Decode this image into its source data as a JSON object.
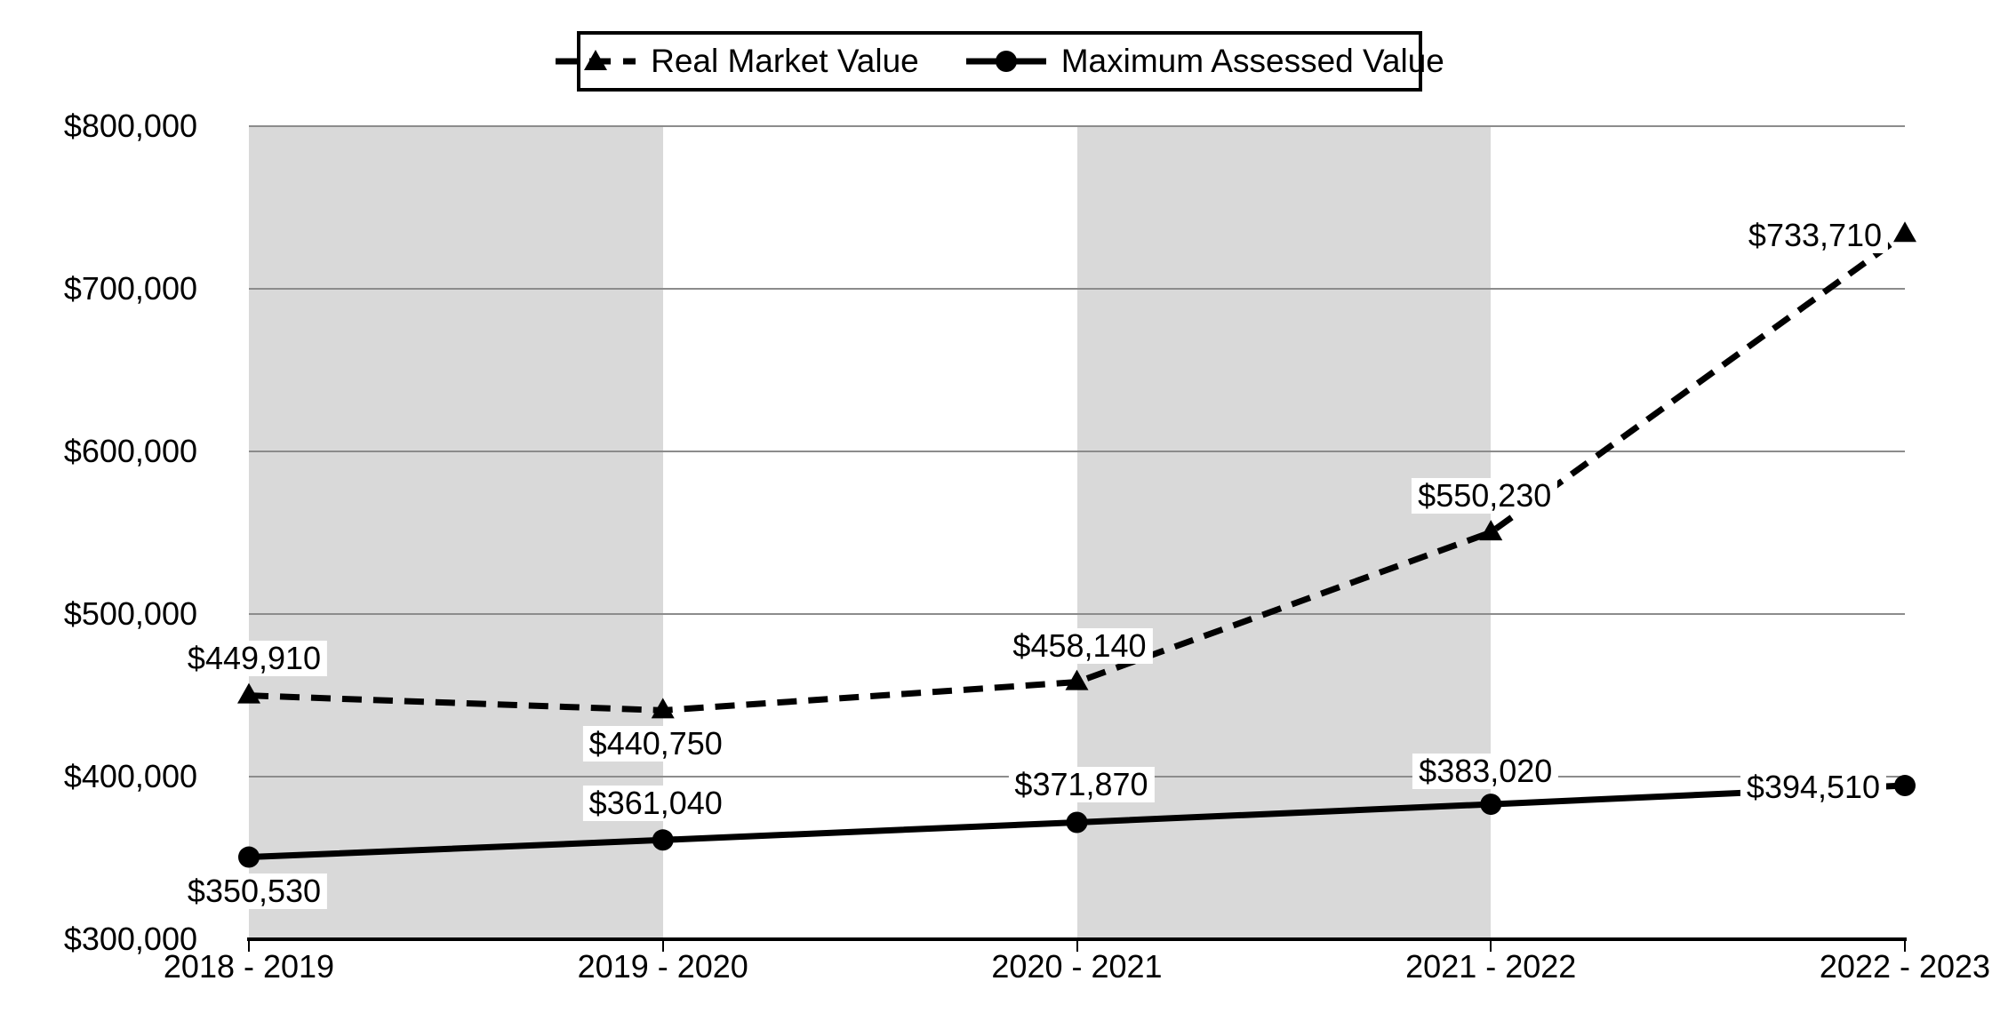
{
  "legend": {
    "items": [
      {
        "label": "Real Market Value",
        "marker": "dashed-triangle"
      },
      {
        "label": "Maximum Assessed Value",
        "marker": "solid-circle"
      }
    ]
  },
  "colors": {
    "series": "#000000",
    "band": "#d9d9d9",
    "gridline": "#8c8c8c",
    "label_background": "#ffffff",
    "background": "#ffffff"
  },
  "chart_data": {
    "type": "line",
    "title": "",
    "xlabel": "",
    "ylabel": "",
    "categories": [
      "2018 - 2019",
      "2019 - 2020",
      "2020 - 2021",
      "2021 - 2022",
      "2022 - 2023"
    ],
    "series": [
      {
        "name": "Real Market Value",
        "line_style": "dashed",
        "marker": "triangle",
        "values": [
          449910,
          440750,
          458140,
          550230,
          733710
        ],
        "labels": [
          "$449,910",
          "$440,750",
          "$458,140",
          "$550,230",
          "$733,710"
        ]
      },
      {
        "name": "Maximum Assessed Value",
        "line_style": "solid",
        "marker": "circle",
        "values": [
          350530,
          361040,
          371870,
          383020,
          394510
        ],
        "labels": [
          "$350,530",
          "$361,040",
          "$371,870",
          "$383,020",
          "$394,510"
        ]
      }
    ],
    "ylim": [
      300000,
      800000
    ],
    "yticks": [
      {
        "value": 800000,
        "label": "$800,000"
      },
      {
        "value": 700000,
        "label": "$700,000"
      },
      {
        "value": 600000,
        "label": "$600,000"
      },
      {
        "value": 500000,
        "label": "$500,000"
      },
      {
        "value": 400000,
        "label": "$400,000"
      },
      {
        "value": 300000,
        "label": "$300,000"
      }
    ],
    "grid": "horizontal",
    "legend_position": "top-center",
    "shaded_band_category_spans": [
      [
        0,
        1
      ],
      [
        2,
        3
      ]
    ]
  }
}
